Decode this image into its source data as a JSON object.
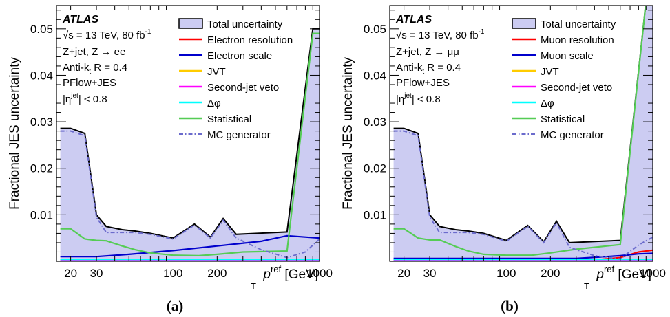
{
  "chart_data": [
    {
      "type": "line",
      "panel_label": "(a)",
      "ylabel": "Fractional JES uncertainty",
      "xlabel_main": "p",
      "xlabel_sub": "T",
      "xlabel_sup": "ref",
      "xlabel_unit": "[GeV]",
      "x_scale": "log",
      "xlim": [
        16,
        1000
      ],
      "ylim": [
        0,
        0.055
      ],
      "x_ticks": [
        {
          "v": 20,
          "label": "20"
        },
        {
          "v": 30,
          "label": "30"
        },
        {
          "v": 100,
          "label": "100"
        },
        {
          "v": 200,
          "label": "200"
        },
        {
          "v": 1000,
          "label": "1000"
        }
      ],
      "y_ticks": [
        {
          "v": 0.01,
          "label": "0.01"
        },
        {
          "v": 0.02,
          "label": "0.02"
        },
        {
          "v": 0.03,
          "label": "0.03"
        },
        {
          "v": 0.04,
          "label": "0.04"
        },
        {
          "v": 0.05,
          "label": "0.05"
        }
      ],
      "annotations": {
        "atlas": "ATLAS",
        "energy": "√s = 13 TeV, 80 fb",
        "energy_sup": "-1",
        "process": "Z+jet, Z → ee",
        "algo": "Anti-k",
        "algo_sub": "t",
        "algo_rest": " R = 0.4",
        "calib": "PFlow+JES",
        "eta_pre": "|η",
        "eta_sup": "jet",
        "eta_post": "| < 0.8"
      },
      "legend_position": "top-right",
      "series": [
        {
          "name": "Total uncertainty",
          "style": "band",
          "color": "#000000",
          "fill": "#ccccf2",
          "x": [
            17,
            20,
            25,
            30,
            35,
            45,
            55,
            70,
            100,
            140,
            180,
            220,
            270,
            600,
            900,
            1000
          ],
          "y": [
            0.0286,
            0.0286,
            0.0275,
            0.01,
            0.0075,
            0.0068,
            0.0065,
            0.006,
            0.005,
            0.008,
            0.0052,
            0.0092,
            0.0058,
            0.0063,
            0.05,
            0.05
          ]
        },
        {
          "name": "Electron resolution",
          "style": "solid",
          "color": "#ff0000",
          "x": [
            17,
            1000
          ],
          "y": [
            0.0003,
            0.0003
          ]
        },
        {
          "name": "Electron scale",
          "style": "solid",
          "color": "#0000cc",
          "x": [
            17,
            30,
            50,
            100,
            200,
            400,
            600,
            1000
          ],
          "y": [
            0.001,
            0.001,
            0.0015,
            0.0023,
            0.0033,
            0.0043,
            0.0055,
            0.005
          ]
        },
        {
          "name": "JVT",
          "style": "solid",
          "color": "#ffcc00",
          "x": [
            17,
            1000
          ],
          "y": [
            0.0001,
            0.0001
          ]
        },
        {
          "name": "Second-jet veto",
          "style": "solid",
          "color": "#ff00ff",
          "x": [
            17,
            200,
            1000
          ],
          "y": [
            0.0002,
            0.0002,
            0.0003
          ]
        },
        {
          "name": "Δφ",
          "style": "solid",
          "color": "#00ffff",
          "x": [
            17,
            1000
          ],
          "y": [
            0.0004,
            0.0004
          ]
        },
        {
          "name": "Statistical",
          "style": "solid",
          "color": "#55cc55",
          "x": [
            17,
            20,
            25,
            30,
            35,
            45,
            55,
            70,
            100,
            150,
            200,
            300,
            600,
            900,
            1000
          ],
          "y": [
            0.007,
            0.007,
            0.0048,
            0.0045,
            0.0044,
            0.0033,
            0.0025,
            0.0018,
            0.0013,
            0.0012,
            0.0015,
            0.002,
            0.0022,
            0.049,
            0.049
          ]
        },
        {
          "name": "MC generator",
          "style": "dashdot",
          "color": "#6b6bcc",
          "x": [
            17,
            20,
            25,
            30,
            35,
            45,
            55,
            70,
            100,
            140,
            180,
            220,
            270,
            400,
            600,
            800,
            1000
          ],
          "y": [
            0.028,
            0.028,
            0.027,
            0.0095,
            0.0062,
            0.0062,
            0.0062,
            0.0058,
            0.0048,
            0.0078,
            0.005,
            0.0088,
            0.005,
            0.0025,
            0.0008,
            0.002,
            0.0048
          ]
        }
      ]
    },
    {
      "type": "line",
      "panel_label": "(b)",
      "ylabel": "Fractional JES uncertainty",
      "xlabel_main": "p",
      "xlabel_sub": "T",
      "xlabel_sup": "ref",
      "xlabel_unit": "[GeV]",
      "x_scale": "log",
      "xlim": [
        16,
        1000
      ],
      "ylim": [
        0,
        0.055
      ],
      "x_ticks": [
        {
          "v": 20,
          "label": "20"
        },
        {
          "v": 30,
          "label": "30"
        },
        {
          "v": 100,
          "label": "100"
        },
        {
          "v": 200,
          "label": "200"
        },
        {
          "v": 1000,
          "label": "1000"
        }
      ],
      "y_ticks": [
        {
          "v": 0.01,
          "label": "0.01"
        },
        {
          "v": 0.02,
          "label": "0.02"
        },
        {
          "v": 0.03,
          "label": "0.03"
        },
        {
          "v": 0.04,
          "label": "0.04"
        },
        {
          "v": 0.05,
          "label": "0.05"
        }
      ],
      "annotations": {
        "atlas": "ATLAS",
        "energy": "√s = 13 TeV, 80 fb",
        "energy_sup": "-1",
        "process": "Z+jet, Z → μμ",
        "algo": "Anti-k",
        "algo_sub": "t",
        "algo_rest": " R = 0.4",
        "calib": "PFlow+JES",
        "eta_pre": "|η",
        "eta_sup": "jet",
        "eta_post": "| < 0.8"
      },
      "legend_position": "top-right",
      "series": [
        {
          "name": "Total uncertainty",
          "style": "band",
          "color": "#000000",
          "fill": "#ccccf2",
          "x": [
            17,
            20,
            25,
            30,
            35,
            45,
            55,
            70,
            100,
            140,
            180,
            220,
            270,
            600,
            900,
            1000
          ],
          "y": [
            0.0286,
            0.0286,
            0.0275,
            0.01,
            0.0075,
            0.0068,
            0.0065,
            0.006,
            0.0045,
            0.0077,
            0.0042,
            0.0086,
            0.004,
            0.0045,
            0.056,
            0.056
          ]
        },
        {
          "name": "Muon resolution",
          "style": "solid",
          "color": "#ff0000",
          "x": [
            17,
            400,
            600,
            800,
            1000
          ],
          "y": [
            0.0003,
            0.0003,
            0.0008,
            0.002,
            0.0024
          ]
        },
        {
          "name": "Muon scale",
          "style": "solid",
          "color": "#0000cc",
          "x": [
            17,
            300,
            600,
            800,
            1000
          ],
          "y": [
            0.0006,
            0.0006,
            0.0012,
            0.0016,
            0.0017
          ]
        },
        {
          "name": "JVT",
          "style": "solid",
          "color": "#ffcc00",
          "x": [
            17,
            1000
          ],
          "y": [
            0.0001,
            0.0001
          ]
        },
        {
          "name": "Second-jet veto",
          "style": "solid",
          "color": "#ff00ff",
          "x": [
            17,
            1000
          ],
          "y": [
            0.0002,
            0.0002
          ]
        },
        {
          "name": "Δφ",
          "style": "solid",
          "color": "#00ffff",
          "x": [
            17,
            1000
          ],
          "y": [
            0.0004,
            0.0004
          ]
        },
        {
          "name": "Statistical",
          "style": "solid",
          "color": "#55cc55",
          "x": [
            17,
            20,
            25,
            30,
            35,
            45,
            55,
            70,
            100,
            150,
            200,
            300,
            600,
            900,
            1000
          ],
          "y": [
            0.007,
            0.007,
            0.005,
            0.0046,
            0.0046,
            0.0032,
            0.0022,
            0.0015,
            0.0013,
            0.0013,
            0.0018,
            0.0026,
            0.0036,
            0.056,
            0.056
          ]
        },
        {
          "name": "MC generator",
          "style": "dashdot",
          "color": "#6b6bcc",
          "x": [
            17,
            20,
            25,
            30,
            35,
            45,
            55,
            70,
            100,
            140,
            180,
            220,
            270,
            400,
            600,
            800,
            1000
          ],
          "y": [
            0.028,
            0.028,
            0.027,
            0.0095,
            0.0062,
            0.0062,
            0.0062,
            0.0058,
            0.0043,
            0.0075,
            0.004,
            0.0083,
            0.003,
            0.0012,
            0.0005,
            0.0035,
            0.0052
          ]
        }
      ]
    }
  ]
}
